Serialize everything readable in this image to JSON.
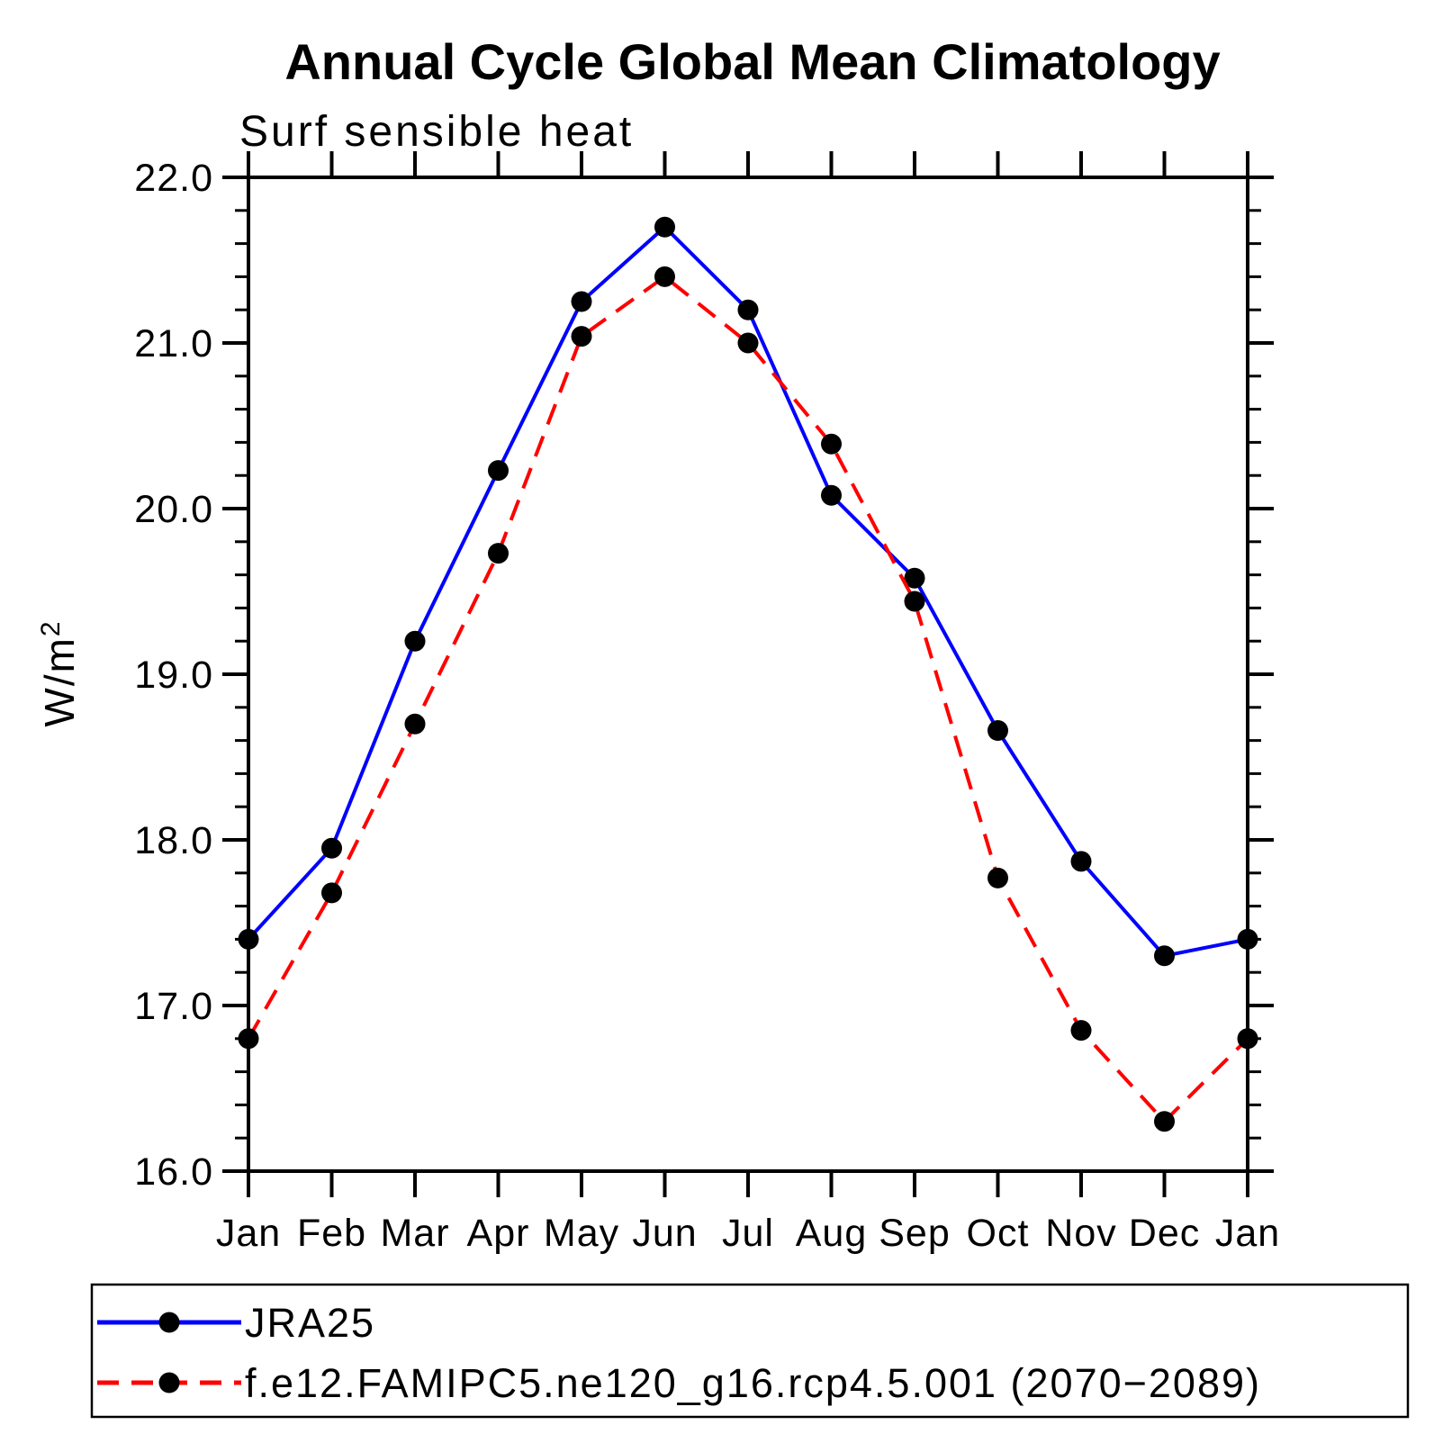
{
  "chart": {
    "title": "Annual Cycle Global Mean Climatology",
    "subtitle": "Surf sensible heat"
  },
  "chart_data": {
    "type": "line",
    "title": "Annual Cycle Global Mean Climatology",
    "subtitle": "Surf sensible heat",
    "xlabel": "",
    "ylabel_base": "W/m",
    "ylabel_exponent": "2",
    "ylim": [
      16.0,
      22.0
    ],
    "y_major_step": 1.0,
    "y_minor_step": 0.2,
    "y_tick_labels": [
      "16.0",
      "17.0",
      "18.0",
      "19.0",
      "20.0",
      "21.0",
      "22.0"
    ],
    "categories": [
      "Jan",
      "Feb",
      "Mar",
      "Apr",
      "May",
      "Jun",
      "Jul",
      "Aug",
      "Sep",
      "Oct",
      "Nov",
      "Dec",
      "Jan"
    ],
    "grid": false,
    "legend_position": "bottom-left",
    "marker": "filled-circle",
    "marker_color": "#000000",
    "series": [
      {
        "name": "JRA25",
        "color": "#0000ff",
        "line_style": "solid",
        "values": [
          17.4,
          17.95,
          19.2,
          20.23,
          21.25,
          21.7,
          21.2,
          20.08,
          19.58,
          18.66,
          17.87,
          17.3,
          17.4
        ]
      },
      {
        "name": "f.e12.FAMIPC5.ne120_g16.rcp4.5.001 (2070−2089)",
        "color": "#ff0000",
        "line_style": "dashed",
        "values": [
          16.8,
          17.68,
          18.7,
          19.73,
          21.04,
          21.4,
          21.0,
          20.39,
          19.44,
          17.77,
          16.85,
          16.3,
          16.8
        ]
      }
    ]
  }
}
